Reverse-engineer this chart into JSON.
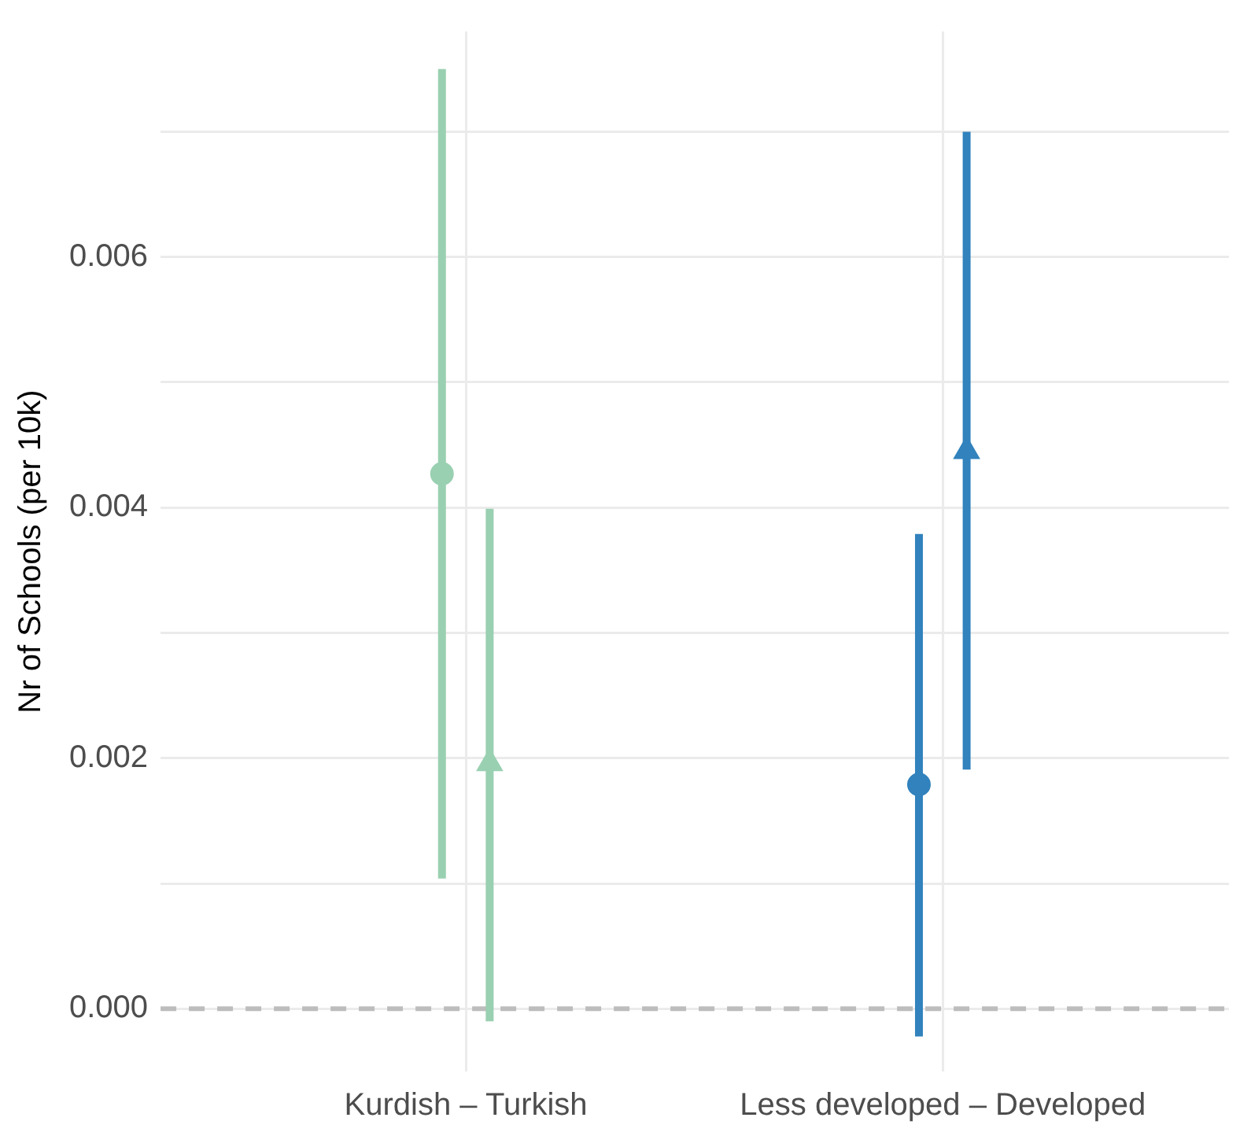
{
  "chart_data": {
    "type": "scatter",
    "ylabel": "Nr of Schools (per 10k)",
    "categories": [
      "Kurdish – Turkish",
      "Less developed – Developed"
    ],
    "series": [
      {
        "marker": "circle",
        "colors": [
          "#99d0b1",
          "#3182bd"
        ],
        "values": [
          0.00427,
          0.00179
        ],
        "errors": [
          [
            0.00104,
            0.0075
          ],
          [
            -0.00022,
            0.00379
          ]
        ]
      },
      {
        "marker": "triangle",
        "colors": [
          "#99d0b1",
          "#3182bd"
        ],
        "values": [
          0.00196,
          0.00445
        ],
        "errors": [
          [
            -0.0001,
            0.00399
          ],
          [
            0.00191,
            0.007
          ]
        ]
      }
    ],
    "ylim": [
      -0.0005,
      0.0078
    ],
    "yticks": [
      {
        "value": 0,
        "label": "0.000"
      },
      {
        "value": 0.001,
        "label": null
      },
      {
        "value": 0.002,
        "label": "0.002"
      },
      {
        "value": 0.003,
        "label": null
      },
      {
        "value": 0.004,
        "label": "0.004"
      },
      {
        "value": 0.005,
        "label": null
      },
      {
        "value": 0.006,
        "label": "0.006"
      },
      {
        "value": 0.007,
        "label": null
      }
    ],
    "grid": true,
    "ref_lines": [
      {
        "axis": "y",
        "value": 0,
        "color": "#bdbdbd",
        "line_style": "dashed"
      }
    ]
  }
}
